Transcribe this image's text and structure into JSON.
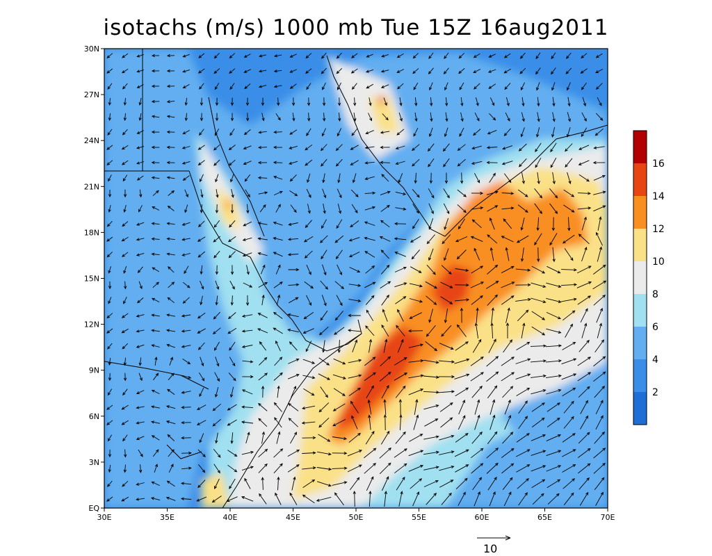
{
  "title": "isotachs (m/s) 1000 mb Tue 15Z 16aug2011",
  "map": {
    "lon_range": [
      30,
      70
    ],
    "lat_range": [
      0,
      30
    ],
    "x_ticks": [
      "30E",
      "35E",
      "40E",
      "45E",
      "50E",
      "55E",
      "60E",
      "65E",
      "70E"
    ],
    "y_ticks": [
      "EQ",
      "3N",
      "6N",
      "9N",
      "12N",
      "15N",
      "18N",
      "21N",
      "24N",
      "27N",
      "30N"
    ],
    "fill": "wind speed isotachs (shaded), wind vectors (arrows), coastlines and borders"
  },
  "colorbar": {
    "levels": [
      "2",
      "4",
      "6",
      "8",
      "10",
      "12",
      "14",
      "16"
    ],
    "colors": [
      "#1e6ed6",
      "#3a8ee8",
      "#62aef0",
      "#a0e0f0",
      "#ebebeb",
      "#fae187",
      "#f98f20",
      "#e74512",
      "#b30000"
    ],
    "orientation": "vertical, right"
  },
  "reference_vector": {
    "value": "10",
    "units": "m/s"
  }
}
